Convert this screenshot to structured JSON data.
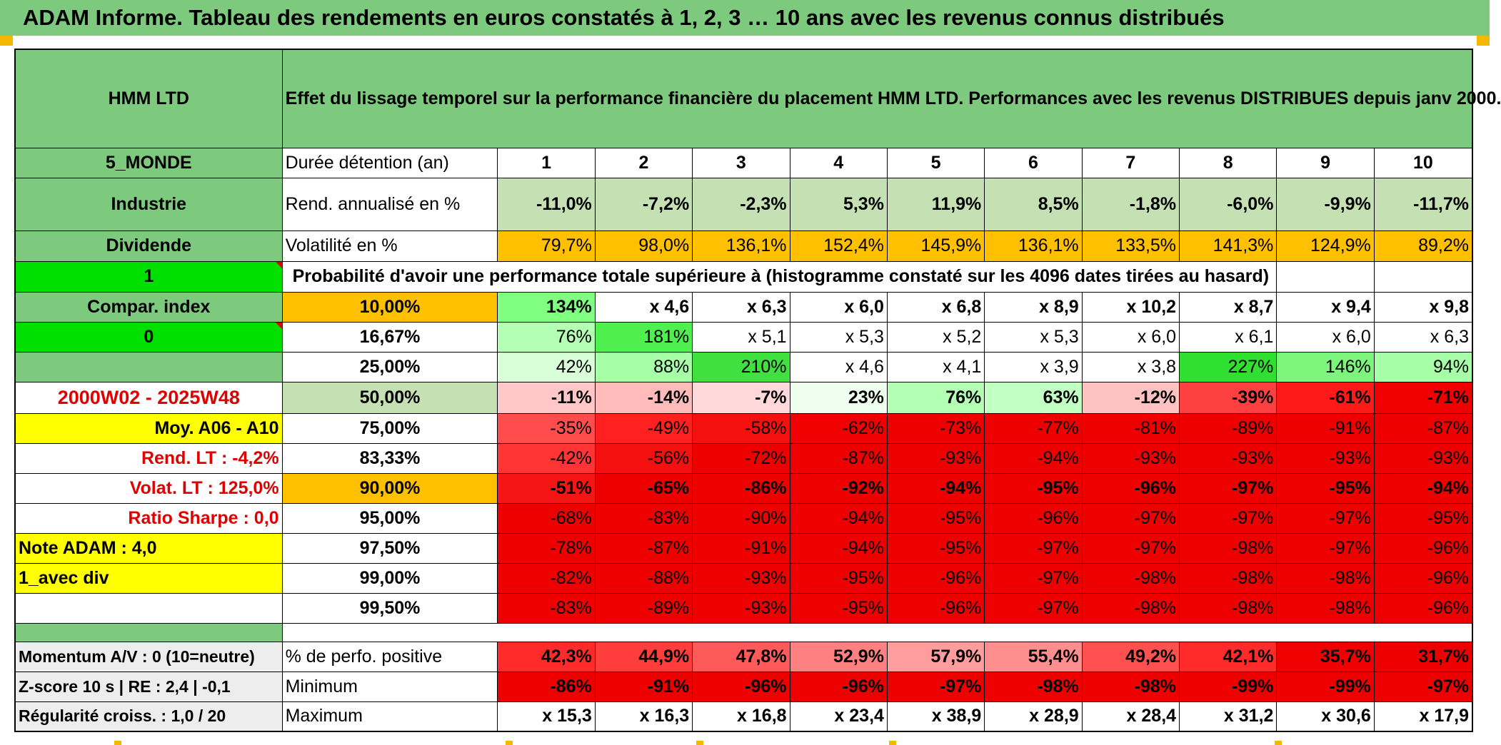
{
  "banner": {
    "title": "ADAM Informe. Tableau des rendements en euros constatés à 1, 2, 3 … 10 ans avec les revenus connus distribués"
  },
  "header": {
    "fund_name": "HMM LTD",
    "description": "Effet du lissage temporel sur la performance financière du placement HMM LTD. Performances avec les revenus DISTRIBUES depuis janv 2000."
  },
  "left": {
    "zone": "5_MONDE",
    "sector": "Industrie",
    "income": "Dividende",
    "flag1": "1",
    "compar_label": "Compar. index",
    "flag2": "0",
    "blank": "",
    "period": "2000W02 - 2025W48",
    "moy": "Moy. A06 - A10",
    "rend_lt": "Rend. LT :    -4,2%",
    "volat_lt": "Volat. LT :   125,0%",
    "sharpe": "Ratio Sharpe :    0,0",
    "note": "Note ADAM : 4,0",
    "avec_div": "1_avec div",
    "momentum": "Momentum A/V : 0 (10=neutre)",
    "zscore": "Z-score 10 s | RE : 2,4 | -0,1",
    "regularite": "Régularité croiss. : 1,0 / 20"
  },
  "labels": {
    "duree": "Durée détention (an)",
    "rend": "Rend. annualisé en %",
    "volat": "Volatilité en %",
    "proba": "Probabilité d'avoir une performance totale supérieure à (histogramme constaté sur les 4096 dates tirées au hasard)",
    "positive": "% de perfo. positive",
    "minimum": "Minimum",
    "maximum": "Maximum"
  },
  "years": [
    "1",
    "2",
    "3",
    "4",
    "5",
    "6",
    "7",
    "8",
    "9",
    "10"
  ],
  "rend": [
    "-11,0%",
    "-7,2%",
    "-2,3%",
    "5,3%",
    "11,9%",
    "8,5%",
    "-1,8%",
    "-6,0%",
    "-9,9%",
    "-11,7%"
  ],
  "volat": [
    "79,7%",
    "98,0%",
    "136,1%",
    "152,4%",
    "145,9%",
    "136,1%",
    "133,5%",
    "141,3%",
    "124,9%",
    "89,2%"
  ],
  "pct_rows": [
    {
      "p": "10,00%",
      "vals": [
        "134%",
        "x 4,6",
        "x 6,3",
        "x 6,0",
        "x 6,8",
        "x 8,9",
        "x 10,2",
        "x 8,7",
        "x 9,4",
        "x 9,8"
      ],
      "colors": [
        "#80ff80",
        "#ffffff",
        "#ffffff",
        "#ffffff",
        "#ffffff",
        "#ffffff",
        "#ffffff",
        "#ffffff",
        "#ffffff",
        "#ffffff"
      ]
    },
    {
      "p": "16,67%",
      "vals": [
        "76%",
        "181%",
        "x 5,1",
        "x 5,3",
        "x 5,2",
        "x 5,3",
        "x 6,0",
        "x 6,1",
        "x 6,0",
        "x 6,3"
      ],
      "colors": [
        "#b3ffb3",
        "#50ef50",
        "#ffffff",
        "#ffffff",
        "#ffffff",
        "#ffffff",
        "#ffffff",
        "#ffffff",
        "#ffffff",
        "#ffffff"
      ]
    },
    {
      "p": "25,00%",
      "vals": [
        "42%",
        "88%",
        "210%",
        "x 4,6",
        "x 4,1",
        "x 3,9",
        "x 3,8",
        "227%",
        "146%",
        "94%"
      ],
      "colors": [
        "#d9ffd9",
        "#a6ffa6",
        "#40e040",
        "#ffffff",
        "#ffffff",
        "#ffffff",
        "#ffffff",
        "#30e030",
        "#7df57d",
        "#a6ffa6"
      ]
    },
    {
      "p": "50,00%",
      "vals": [
        "-11%",
        "-14%",
        "-7%",
        "23%",
        "76%",
        "63%",
        "-12%",
        "-39%",
        "-61%",
        "-71%"
      ],
      "colors": [
        "#ffc7c7",
        "#ffbaba",
        "#ffd9d9",
        "#efffef",
        "#b3ffb3",
        "#c2ffc2",
        "#ffc2c2",
        "#ff4040",
        "#ff1a1a",
        "#f00000"
      ]
    },
    {
      "p": "75,00%",
      "vals": [
        "-35%",
        "-49%",
        "-58%",
        "-62%",
        "-73%",
        "-77%",
        "-81%",
        "-89%",
        "-91%",
        "-87%"
      ],
      "colors": [
        "#ff4d4d",
        "#ff2020",
        "#f51010",
        "#f00000",
        "#ee0000",
        "#ee0000",
        "#ee0000",
        "#ee0000",
        "#ee0000",
        "#ee0000"
      ]
    },
    {
      "p": "83,33%",
      "vals": [
        "-42%",
        "-56%",
        "-72%",
        "-87%",
        "-93%",
        "-94%",
        "-93%",
        "-93%",
        "-93%",
        "-93%"
      ],
      "colors": [
        "#ff3535",
        "#f51010",
        "#ee0000",
        "#ee0000",
        "#ee0000",
        "#ee0000",
        "#ee0000",
        "#ee0000",
        "#ee0000",
        "#ee0000"
      ]
    },
    {
      "p": "90,00%",
      "vals": [
        "-51%",
        "-65%",
        "-86%",
        "-92%",
        "-94%",
        "-95%",
        "-96%",
        "-97%",
        "-95%",
        "-94%"
      ],
      "colors": [
        "#f51515",
        "#ee0000",
        "#ee0000",
        "#ee0000",
        "#ee0000",
        "#ee0000",
        "#ee0000",
        "#ee0000",
        "#ee0000",
        "#ee0000"
      ]
    },
    {
      "p": "95,00%",
      "vals": [
        "-68%",
        "-83%",
        "-90%",
        "-94%",
        "-95%",
        "-96%",
        "-97%",
        "-97%",
        "-97%",
        "-95%"
      ],
      "colors": [
        "#ee0000",
        "#ee0000",
        "#ee0000",
        "#ee0000",
        "#ee0000",
        "#ee0000",
        "#ee0000",
        "#ee0000",
        "#ee0000",
        "#ee0000"
      ]
    },
    {
      "p": "97,50%",
      "vals": [
        "-78%",
        "-87%",
        "-91%",
        "-94%",
        "-95%",
        "-97%",
        "-97%",
        "-98%",
        "-97%",
        "-96%"
      ],
      "colors": [
        "#ee0000",
        "#ee0000",
        "#ee0000",
        "#ee0000",
        "#ee0000",
        "#ee0000",
        "#ee0000",
        "#ee0000",
        "#ee0000",
        "#ee0000"
      ]
    },
    {
      "p": "99,00%",
      "vals": [
        "-82%",
        "-88%",
        "-93%",
        "-95%",
        "-96%",
        "-97%",
        "-98%",
        "-98%",
        "-98%",
        "-96%"
      ],
      "colors": [
        "#ee0000",
        "#ee0000",
        "#ee0000",
        "#ee0000",
        "#ee0000",
        "#ee0000",
        "#ee0000",
        "#ee0000",
        "#ee0000",
        "#ee0000"
      ]
    },
    {
      "p": "99,50%",
      "vals": [
        "-83%",
        "-89%",
        "-93%",
        "-95%",
        "-96%",
        "-97%",
        "-98%",
        "-98%",
        "-98%",
        "-96%"
      ],
      "colors": [
        "#ee0000",
        "#ee0000",
        "#ee0000",
        "#ee0000",
        "#ee0000",
        "#ee0000",
        "#ee0000",
        "#ee0000",
        "#ee0000",
        "#ee0000"
      ]
    }
  ],
  "positive": {
    "vals": [
      "42,3%",
      "44,9%",
      "47,8%",
      "52,9%",
      "57,9%",
      "55,4%",
      "49,2%",
      "42,1%",
      "35,7%",
      "31,7%"
    ],
    "colors": [
      "#ff2a2a",
      "#ff3d3d",
      "#ff5a5a",
      "#ff8080",
      "#ff9d9d",
      "#ff8e8e",
      "#ff5050",
      "#ff2a2a",
      "#f00000",
      "#ee0000"
    ]
  },
  "minimum": {
    "vals": [
      "-86%",
      "-91%",
      "-96%",
      "-96%",
      "-97%",
      "-98%",
      "-98%",
      "-99%",
      "-99%",
      "-97%"
    ],
    "colors": [
      "#ee0000",
      "#ee0000",
      "#ee0000",
      "#ee0000",
      "#ee0000",
      "#ee0000",
      "#ee0000",
      "#ee0000",
      "#ee0000",
      "#ee0000"
    ]
  },
  "maximum": {
    "vals": [
      "x 15,3",
      "x 16,3",
      "x 16,8",
      "x 23,4",
      "x 38,9",
      "x 28,9",
      "x 28,4",
      "x 31,2",
      "x 30,6",
      "x 17,9"
    ]
  },
  "colors": {
    "banner_green": "#7dc97d",
    "light_green": "#c5e0b3",
    "bright_green": "#00e000",
    "orange": "#ffc000",
    "yellow": "#ffff00",
    "red": "#ee0000",
    "red_text": "#e00000"
  }
}
